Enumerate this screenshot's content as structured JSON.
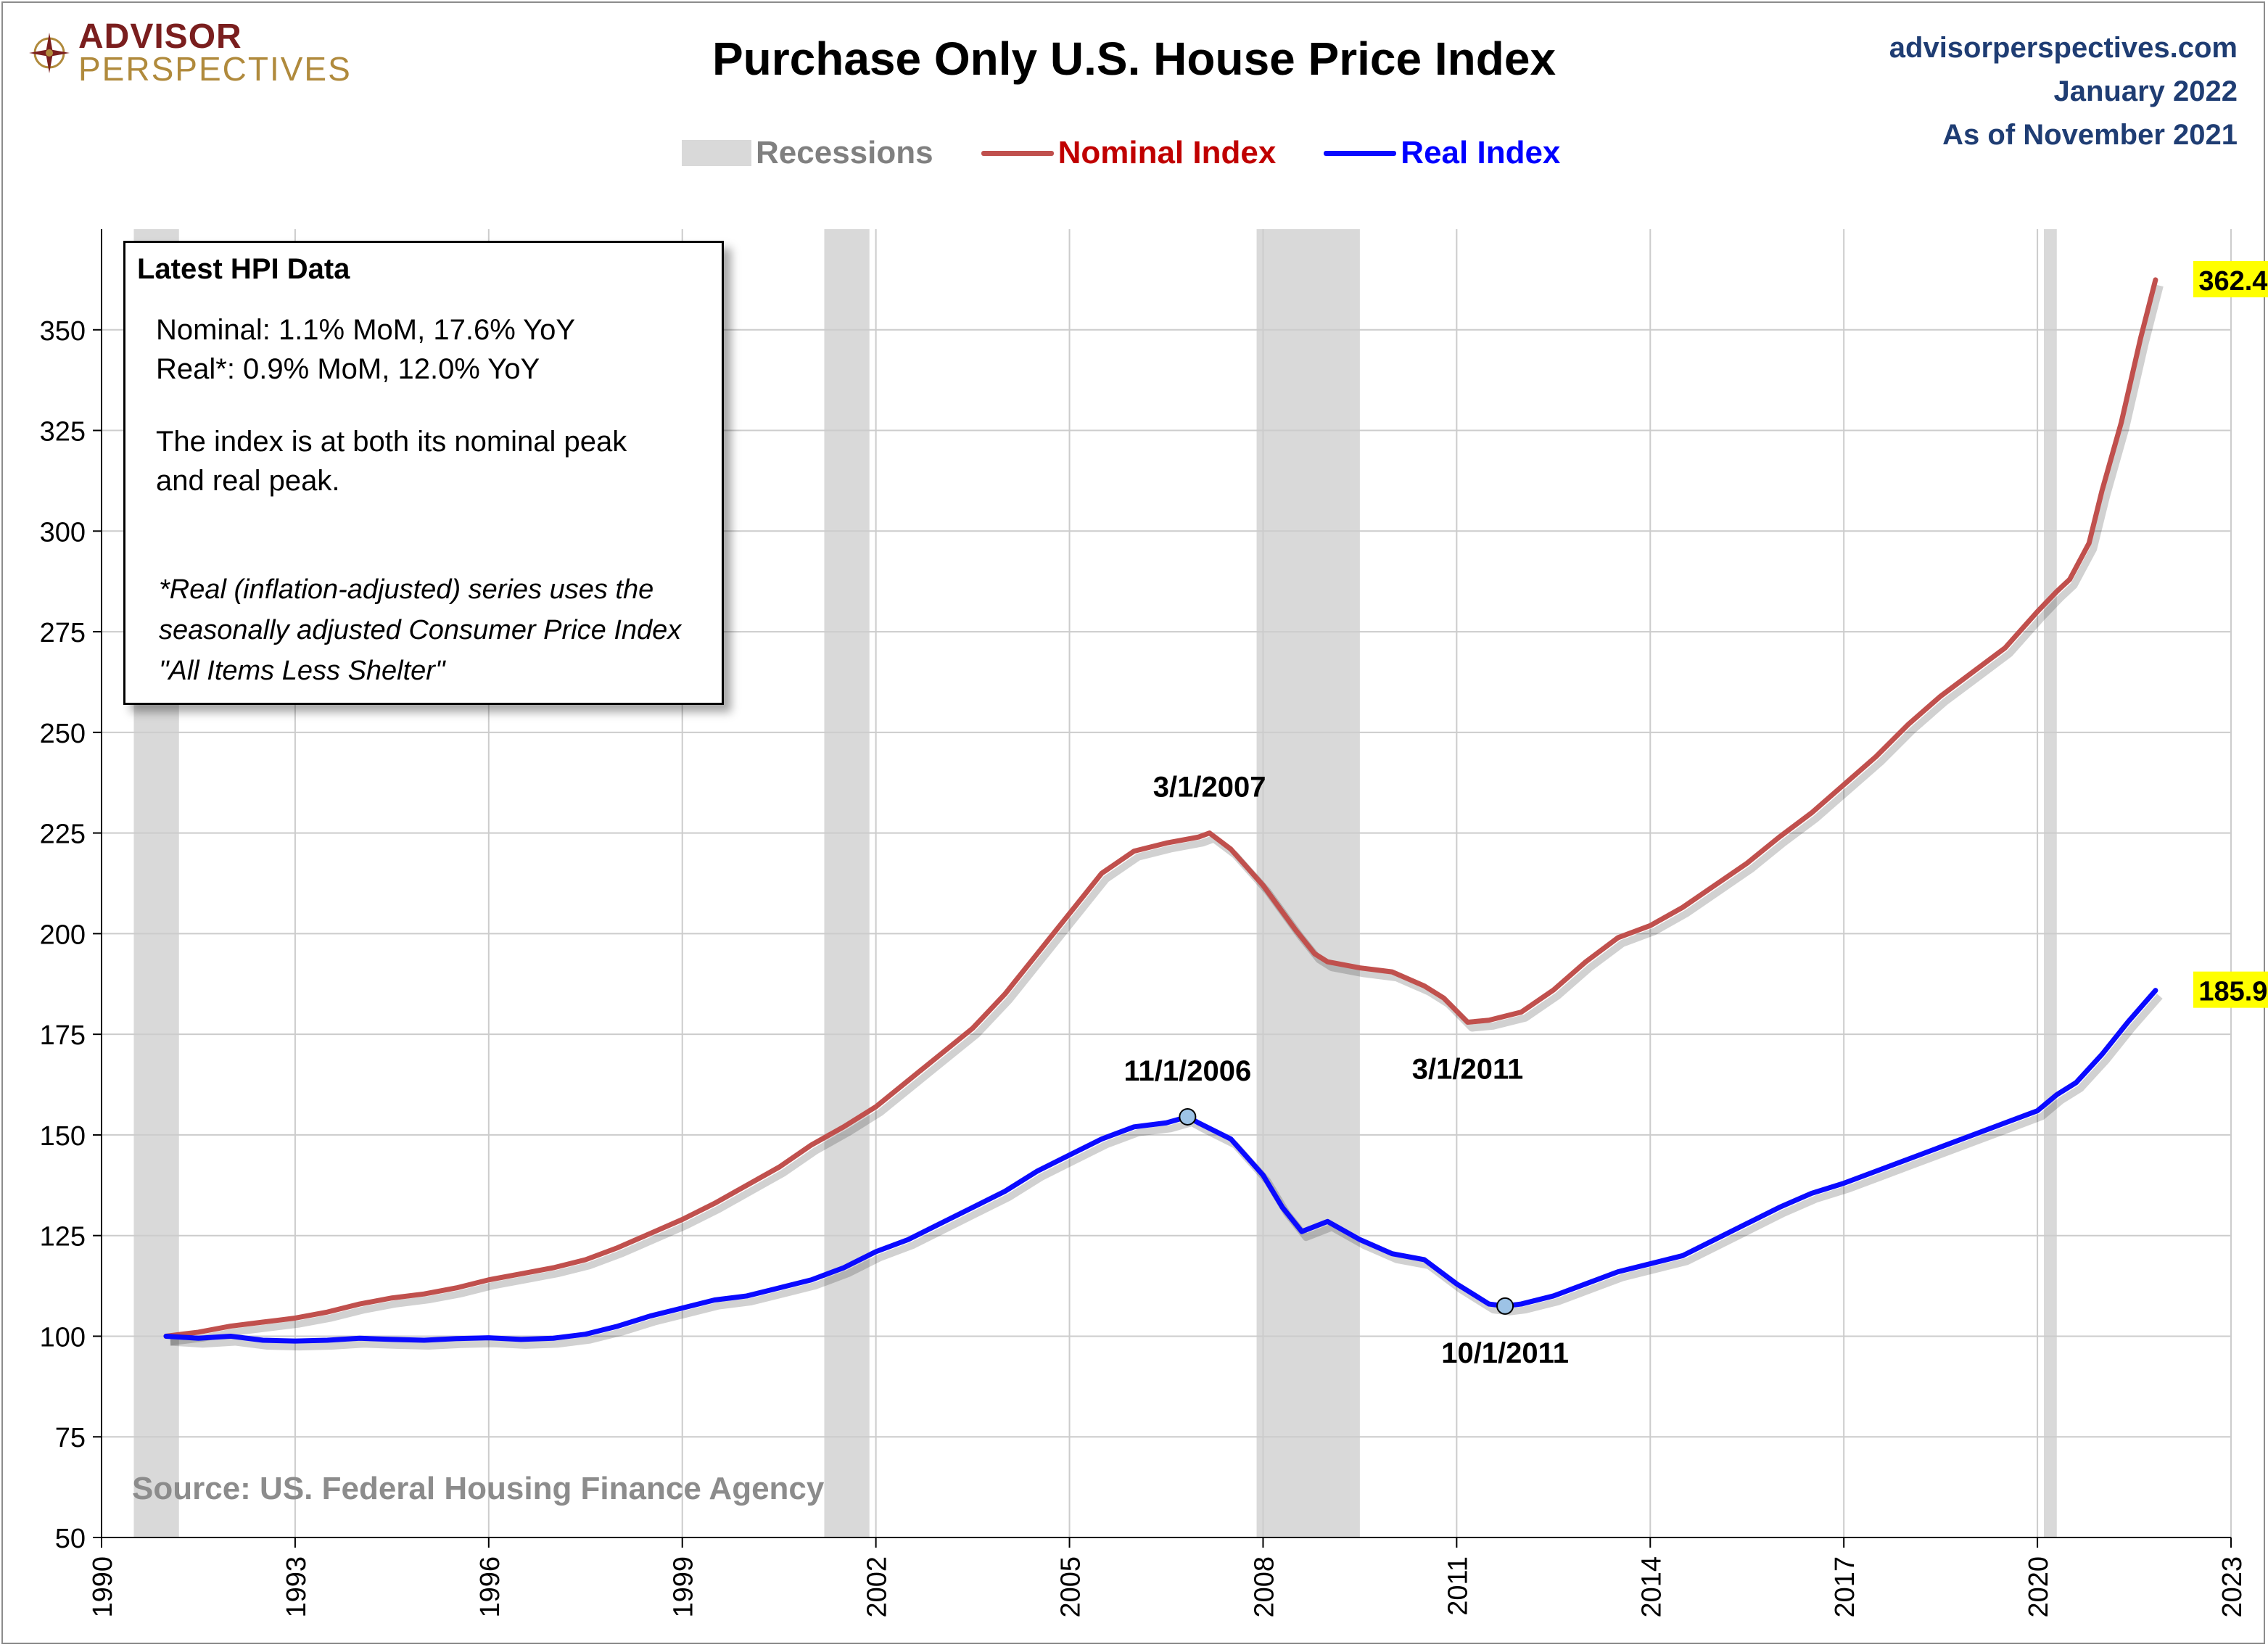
{
  "header": {
    "logo_line1": "ADVISOR",
    "logo_line2": "PERSPECTIVES",
    "title": "Purchase Only U.S. House Price Index",
    "site": "advisorperspectives.com",
    "date": "January 2022",
    "as_of": "As of November 2021"
  },
  "legend": {
    "recessions": "Recessions",
    "nominal": "Nominal Index",
    "real": "Real Index"
  },
  "colors": {
    "nominal": "#c0504d",
    "real": "#0a0aff",
    "recession": "#d9d9d9",
    "label_bg": "#ffff00",
    "grid": "#cccccc"
  },
  "infobox": {
    "heading": "Latest HPI Data",
    "nominal_line": "Nominal:  1.1% MoM, 17.6% YoY",
    "real_line": "Real*:  0.9% MoM, 12.0% YoY",
    "peak_line1": "The index is at both its nominal peak",
    "peak_line2": "and real peak.",
    "note": "*Real (inflation-adjusted) series uses the seasonally adjusted Consumer Price Index \"All Items Less Shelter\""
  },
  "source": "Source: US. Federal Housing Finance Agency",
  "chart_data": {
    "type": "line",
    "title": "Purchase Only U.S. House Price Index",
    "xlabel": "",
    "ylabel": "",
    "xlim": [
      1990,
      2023
    ],
    "ylim": [
      50,
      375
    ],
    "x_ticks": [
      "1990",
      "1993",
      "1996",
      "1999",
      "2002",
      "2005",
      "2008",
      "2011",
      "2014",
      "2017",
      "2020",
      "2023"
    ],
    "y_ticks": [
      "50",
      "75",
      "100",
      "125",
      "150",
      "175",
      "200",
      "225",
      "250",
      "275",
      "300",
      "325",
      "350"
    ],
    "grid": true,
    "legend_position": "top-center",
    "recessions": [
      {
        "start": 1990.5,
        "end": 1991.2
      },
      {
        "start": 2001.2,
        "end": 2001.9
      },
      {
        "start": 2007.9,
        "end": 2009.5
      },
      {
        "start": 2020.1,
        "end": 2020.3
      }
    ],
    "series": [
      {
        "name": "Nominal Index",
        "x": [
          1991.0,
          1991.5,
          1992.0,
          1992.5,
          1993.0,
          1993.5,
          1994.0,
          1994.5,
          1995.0,
          1995.5,
          1996.0,
          1996.5,
          1997.0,
          1997.5,
          1998.0,
          1998.5,
          1999.0,
          1999.5,
          2000.0,
          2000.5,
          2001.0,
          2001.5,
          2002.0,
          2002.5,
          2003.0,
          2003.5,
          2004.0,
          2004.5,
          2005.0,
          2005.5,
          2006.0,
          2006.5,
          2007.0,
          2007.17,
          2007.5,
          2008.0,
          2008.5,
          2008.8,
          2009.0,
          2009.5,
          2010.0,
          2010.5,
          2010.8,
          2011.17,
          2011.5,
          2012.0,
          2012.5,
          2013.0,
          2013.5,
          2014.0,
          2014.5,
          2015.0,
          2015.5,
          2016.0,
          2016.5,
          2017.0,
          2017.5,
          2018.0,
          2018.5,
          2019.0,
          2019.5,
          2020.0,
          2020.3,
          2020.5,
          2020.8,
          2021.0,
          2021.3,
          2021.6,
          2021.83
        ],
        "values": [
          100.0,
          101.0,
          102.5,
          103.5,
          104.5,
          106.0,
          108.0,
          109.5,
          110.5,
          112.0,
          114.0,
          115.5,
          117.0,
          119.0,
          122.0,
          125.5,
          129.0,
          133.0,
          137.5,
          142.0,
          147.5,
          152.0,
          157.0,
          163.5,
          170.0,
          176.5,
          185.0,
          195.0,
          205.0,
          215.0,
          220.5,
          222.5,
          224.0,
          225.0,
          221.0,
          212.0,
          201.0,
          195.0,
          193.0,
          191.5,
          190.5,
          187.0,
          184.0,
          178.0,
          178.5,
          180.5,
          186.0,
          193.0,
          199.0,
          202.0,
          206.5,
          212.0,
          217.5,
          224.0,
          230.0,
          237.0,
          244.0,
          252.0,
          259.0,
          265.0,
          271.0,
          280.0,
          285.0,
          288.0,
          297.0,
          310.0,
          327.0,
          348.0,
          362.4
        ]
      },
      {
        "name": "Real Index",
        "x": [
          1991.0,
          1991.5,
          1992.0,
          1992.5,
          1993.0,
          1993.5,
          1994.0,
          1994.5,
          1995.0,
          1995.5,
          1996.0,
          1996.5,
          1997.0,
          1997.5,
          1998.0,
          1998.5,
          1999.0,
          1999.5,
          2000.0,
          2000.5,
          2001.0,
          2001.5,
          2002.0,
          2002.5,
          2003.0,
          2003.5,
          2004.0,
          2004.5,
          2005.0,
          2005.5,
          2006.0,
          2006.5,
          2006.83,
          2007.0,
          2007.5,
          2008.0,
          2008.3,
          2008.6,
          2009.0,
          2009.5,
          2010.0,
          2010.5,
          2011.0,
          2011.5,
          2011.75,
          2012.0,
          2012.5,
          2013.0,
          2013.5,
          2014.0,
          2014.5,
          2015.0,
          2015.5,
          2016.0,
          2016.5,
          2017.0,
          2017.5,
          2018.0,
          2018.5,
          2019.0,
          2019.5,
          2020.0,
          2020.3,
          2020.6,
          2021.0,
          2021.4,
          2021.83
        ],
        "values": [
          100.0,
          99.5,
          100.0,
          99.0,
          98.8,
          99.0,
          99.5,
          99.2,
          99.0,
          99.4,
          99.6,
          99.2,
          99.5,
          100.5,
          102.5,
          105.0,
          107.0,
          109.0,
          110.0,
          112.0,
          114.0,
          117.0,
          121.0,
          124.0,
          128.0,
          132.0,
          136.0,
          141.0,
          145.0,
          149.0,
          152.0,
          153.0,
          154.5,
          153.0,
          149.0,
          140.0,
          132.0,
          126.0,
          128.5,
          124.0,
          120.5,
          119.0,
          113.0,
          108.0,
          107.5,
          108.0,
          110.0,
          113.0,
          116.0,
          118.0,
          120.0,
          124.0,
          128.0,
          132.0,
          135.5,
          138.0,
          141.0,
          144.0,
          147.0,
          150.0,
          153.0,
          156.0,
          160.0,
          163.0,
          170.0,
          178.0,
          185.9
        ]
      }
    ],
    "annotations": [
      {
        "label": "3/1/2007",
        "x": 2007.17,
        "y": 225.0,
        "series": "Nominal Index",
        "position": "above"
      },
      {
        "label": "3/1/2011",
        "x": 2011.17,
        "y": 178.0,
        "series": "Nominal Index",
        "position": "below"
      },
      {
        "label": "11/1/2006",
        "x": 2006.83,
        "y": 154.5,
        "series": "Real Index",
        "position": "above",
        "marker": true
      },
      {
        "label": "10/1/2011",
        "x": 2011.75,
        "y": 107.5,
        "series": "Real Index",
        "position": "below",
        "marker": true
      }
    ],
    "end_labels": [
      "362.4",
      "185.9"
    ]
  }
}
